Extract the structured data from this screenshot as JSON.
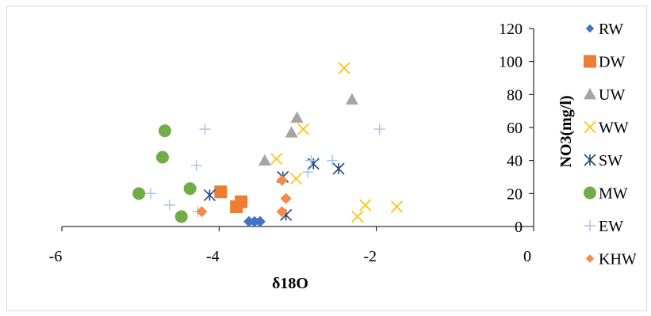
{
  "chart_data": {
    "type": "scatter",
    "title": "",
    "xlabel": "δ18O",
    "ylabel": "NO3(mg/l)",
    "xlim": [
      -6,
      0
    ],
    "ylim": [
      0,
      120
    ],
    "x_ticks": [
      "-6",
      "-4",
      "-2",
      "0"
    ],
    "y_ticks": [
      "0",
      "20",
      "40",
      "60",
      "80",
      "100",
      "120"
    ],
    "grid": false,
    "legend_position": "right",
    "series": [
      {
        "name": "RW",
        "marker": "diamond",
        "color": "#4472C4",
        "points": [
          [
            -3.62,
            3
          ],
          [
            -3.55,
            3
          ],
          [
            -3.48,
            3
          ]
        ]
      },
      {
        "name": "DW",
        "marker": "square",
        "color": "#ED7D31",
        "points": [
          [
            -3.98,
            21
          ],
          [
            -3.78,
            12
          ],
          [
            -3.72,
            15
          ]
        ]
      },
      {
        "name": "UW",
        "marker": "triangle",
        "color": "#A5A5A5",
        "points": [
          [
            -3.42,
            40
          ],
          [
            -3.08,
            57
          ],
          [
            -3.01,
            66
          ],
          [
            -2.31,
            77
          ]
        ]
      },
      {
        "name": "WW",
        "marker": "x",
        "color": "#FFC000",
        "points": [
          [
            -2.41,
            96
          ],
          [
            -2.93,
            59
          ],
          [
            -3.27,
            41
          ],
          [
            -3.02,
            29
          ],
          [
            -2.14,
            13
          ],
          [
            -2.24,
            6
          ],
          [
            -1.74,
            12
          ]
        ]
      },
      {
        "name": "SW",
        "marker": "asterisk",
        "color": "#264478",
        "points": [
          [
            -4.12,
            19
          ],
          [
            -3.19,
            30
          ],
          [
            -3.15,
            7
          ],
          [
            -2.8,
            38
          ],
          [
            -2.48,
            35
          ]
        ]
      },
      {
        "name": "MW",
        "marker": "circle",
        "color": "#70AD47",
        "points": [
          [
            -4.69,
            58
          ],
          [
            -4.72,
            42
          ],
          [
            -5.02,
            20
          ],
          [
            -4.37,
            23
          ],
          [
            -4.48,
            6
          ]
        ]
      },
      {
        "name": "EW",
        "marker": "plus",
        "color": "#9DC3E6",
        "points": [
          [
            -4.18,
            59
          ],
          [
            -4.29,
            37
          ],
          [
            -4.87,
            20
          ],
          [
            -4.63,
            13
          ],
          [
            -4.27,
            9
          ],
          [
            -2.87,
            33
          ],
          [
            -2.83,
            40
          ],
          [
            -2.56,
            40
          ],
          [
            -1.96,
            59
          ]
        ]
      },
      {
        "name": "KHW",
        "marker": "diamond",
        "color": "#F4894B",
        "points": [
          [
            -4.22,
            9
          ],
          [
            -3.2,
            28
          ],
          [
            -3.15,
            17
          ],
          [
            -3.2,
            9
          ]
        ]
      }
    ]
  }
}
